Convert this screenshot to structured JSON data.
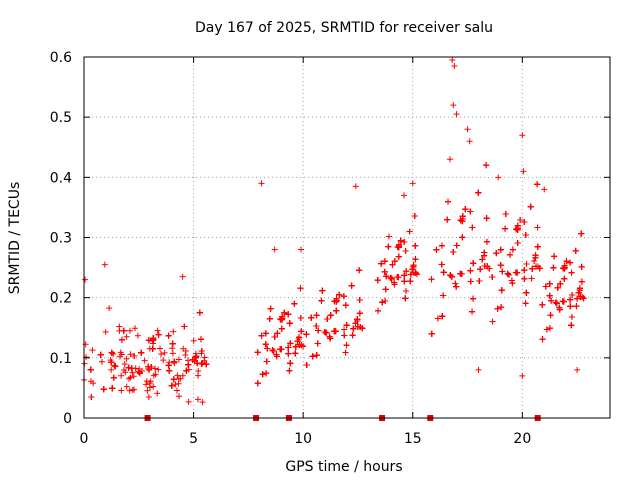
{
  "chart_data": {
    "type": "scatter",
    "title": "Day 167 of 2025, SRMTID for receiver salu",
    "xlabel": "GPS time / hours",
    "ylabel": "SRMTID / TECUs",
    "xlim": [
      0,
      24
    ],
    "ylim": [
      0,
      0.6
    ],
    "xticks": [
      0,
      5,
      10,
      15,
      20
    ],
    "xtick_labels": [
      "0",
      "5",
      "10",
      "15",
      "20"
    ],
    "yticks": [
      0,
      0.1,
      0.2,
      0.3,
      0.4,
      0.5,
      0.6
    ],
    "ytick_labels": [
      "0",
      "0.1",
      "0.2",
      "0.3",
      "0.4",
      "0.5",
      "0.6"
    ],
    "grid": true,
    "marker": "plus",
    "color": "#ff0000",
    "gap_markers_x": [
      2.9,
      7.85,
      9.35,
      13.6,
      15.8,
      20.7
    ],
    "series": [
      {
        "name": "SRMTID",
        "segments": [
          {
            "x_range": [
              0.0,
              5.6
            ],
            "center": 0.09,
            "spread": 0.04,
            "count": 520
          },
          {
            "x_range": [
              7.8,
              10.0
            ],
            "center": 0.12,
            "spread": 0.045,
            "count": 260
          },
          {
            "x_range": [
              10.0,
              12.7
            ],
            "center": 0.15,
            "spread": 0.045,
            "count": 320
          },
          {
            "x_range": [
              13.3,
              15.2
            ],
            "center": 0.24,
            "spread": 0.045,
            "count": 220
          },
          {
            "x_range": [
              15.7,
              18.5
            ],
            "center": 0.25,
            "spread": 0.08,
            "count": 300
          },
          {
            "x_range": [
              18.5,
              20.8
            ],
            "center": 0.25,
            "spread": 0.065,
            "count": 230
          },
          {
            "x_range": [
              20.8,
              22.8
            ],
            "center": 0.2,
            "spread": 0.05,
            "count": 220
          }
        ],
        "outliers": [
          {
            "x": 0.05,
            "y": 0.23
          },
          {
            "x": 0.95,
            "y": 0.255
          },
          {
            "x": 4.5,
            "y": 0.235
          },
          {
            "x": 8.1,
            "y": 0.39
          },
          {
            "x": 8.7,
            "y": 0.28
          },
          {
            "x": 9.9,
            "y": 0.28
          },
          {
            "x": 12.4,
            "y": 0.385
          },
          {
            "x": 14.6,
            "y": 0.37
          },
          {
            "x": 15.0,
            "y": 0.39
          },
          {
            "x": 16.8,
            "y": 0.595
          },
          {
            "x": 16.9,
            "y": 0.585
          },
          {
            "x": 16.85,
            "y": 0.52
          },
          {
            "x": 17.0,
            "y": 0.505
          },
          {
            "x": 16.7,
            "y": 0.43
          },
          {
            "x": 17.5,
            "y": 0.48
          },
          {
            "x": 17.6,
            "y": 0.46
          },
          {
            "x": 20.0,
            "y": 0.47
          },
          {
            "x": 20.05,
            "y": 0.41
          },
          {
            "x": 18.9,
            "y": 0.4
          },
          {
            "x": 21.0,
            "y": 0.38
          },
          {
            "x": 22.5,
            "y": 0.08
          },
          {
            "x": 20.0,
            "y": 0.07
          },
          {
            "x": 18.0,
            "y": 0.08
          }
        ]
      }
    ]
  }
}
